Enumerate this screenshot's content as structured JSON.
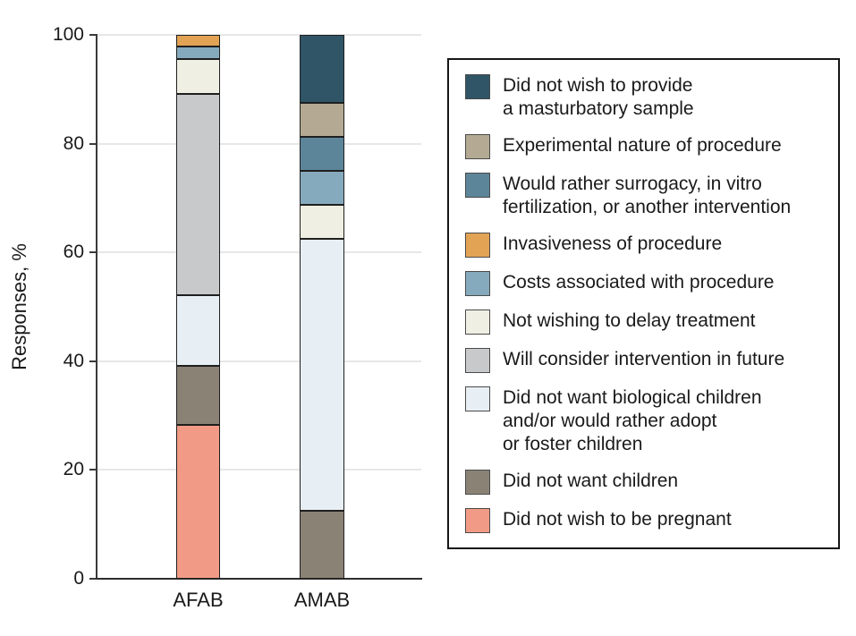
{
  "chart_data": {
    "type": "bar",
    "stacked": true,
    "title": "",
    "xlabel": "",
    "ylabel": "Responses, %",
    "ylim": [
      0,
      100
    ],
    "yticks": [
      0,
      20,
      40,
      60,
      80,
      100
    ],
    "grid": true,
    "legend_position": "right",
    "categories": [
      "AFAB",
      "AMAB"
    ],
    "series": [
      {
        "name": "Did not wish to provide a masturbatory sample",
        "display": "Did not wish to provide\na masturbatory sample",
        "color": "#2f5566",
        "values": [
          0,
          12.5
        ]
      },
      {
        "name": "Experimental nature of procedure",
        "display": "Experimental nature of procedure",
        "color": "#b4aa93",
        "values": [
          0,
          6.25
        ]
      },
      {
        "name": "Would rather surrogacy, in vitro fertilization, or another intervention",
        "display": "Would rather surrogacy, in vitro\nfertilization, or another intervention",
        "color": "#5d8599",
        "values": [
          0,
          6.25
        ]
      },
      {
        "name": "Invasiveness of procedure",
        "display": "Invasiveness of procedure",
        "color": "#e2a355",
        "values": [
          2.2,
          0
        ]
      },
      {
        "name": "Costs associated with procedure",
        "display": "Costs associated with procedure",
        "color": "#86aabd",
        "values": [
          2.2,
          6.25
        ]
      },
      {
        "name": "Not wishing to delay treatment",
        "display": "Not wishing to delay treatment",
        "color": "#f0efe3",
        "values": [
          6.5,
          6.25
        ]
      },
      {
        "name": "Will consider intervention in future",
        "display": "Will consider intervention in future",
        "color": "#c7c9cb",
        "values": [
          37.0,
          0
        ]
      },
      {
        "name": "Did not want biological children and/or would rather adopt or foster children",
        "display": "Did not want biological children\nand/or would rather adopt\nor foster children",
        "color": "#e8eff4",
        "values": [
          13.0,
          50
        ]
      },
      {
        "name": "Did not want children",
        "display": "Did not want children",
        "color": "#8b8276",
        "values": [
          10.9,
          12.5
        ]
      },
      {
        "name": "Did not wish to be pregnant",
        "display": "Did not wish to be pregnant",
        "color": "#f19b86",
        "values": [
          28.3,
          0
        ]
      }
    ]
  },
  "axis": {
    "tick_labels": [
      "0",
      "20",
      "40",
      "60",
      "80",
      "100"
    ],
    "category_labels": [
      "AFAB",
      "AMAB"
    ]
  },
  "colors": {
    "axis_line": "#3a3a3a",
    "gridline": "#e7e7e7",
    "segment_border": "#1f1f1f",
    "text": "#1a1a1a",
    "legend_border": "#161616",
    "swatch_border": "#4a4a4a"
  }
}
